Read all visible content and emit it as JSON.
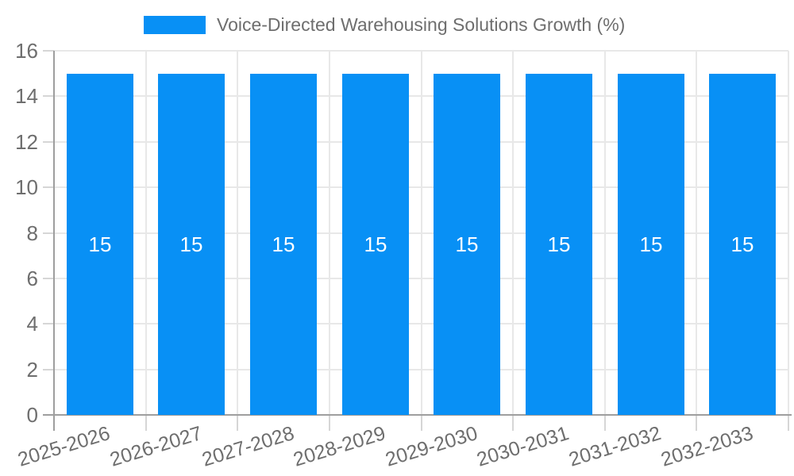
{
  "legend": {
    "label": "Voice-Directed Warehousing Solutions Growth (%)"
  },
  "colors": {
    "bar": "#0890f5",
    "grid": "#e8e8e8",
    "axis": "#9e9e9e",
    "tick": "#d6d6d6",
    "text": "#6e6e6e",
    "value_text": "#ffffff",
    "background": "#ffffff"
  },
  "chart_data": {
    "type": "bar",
    "title": "Voice-Directed Warehousing Solutions Growth (%)",
    "categories": [
      "2025-2026",
      "2026-2027",
      "2027-2028",
      "2028-2029",
      "2029-2030",
      "2030-2031",
      "2031-2032",
      "2032-2033"
    ],
    "values": [
      15,
      15,
      15,
      15,
      15,
      15,
      15,
      15
    ],
    "bar_value_labels": [
      "15",
      "15",
      "15",
      "15",
      "15",
      "15",
      "15",
      "15"
    ],
    "xlabel": "",
    "ylabel": "",
    "ylim": [
      0,
      16
    ],
    "yticks": [
      0,
      2,
      4,
      6,
      8,
      10,
      12,
      14,
      16
    ],
    "grid": true,
    "legend_position": "top",
    "x_tick_rotation_deg": -17
  }
}
